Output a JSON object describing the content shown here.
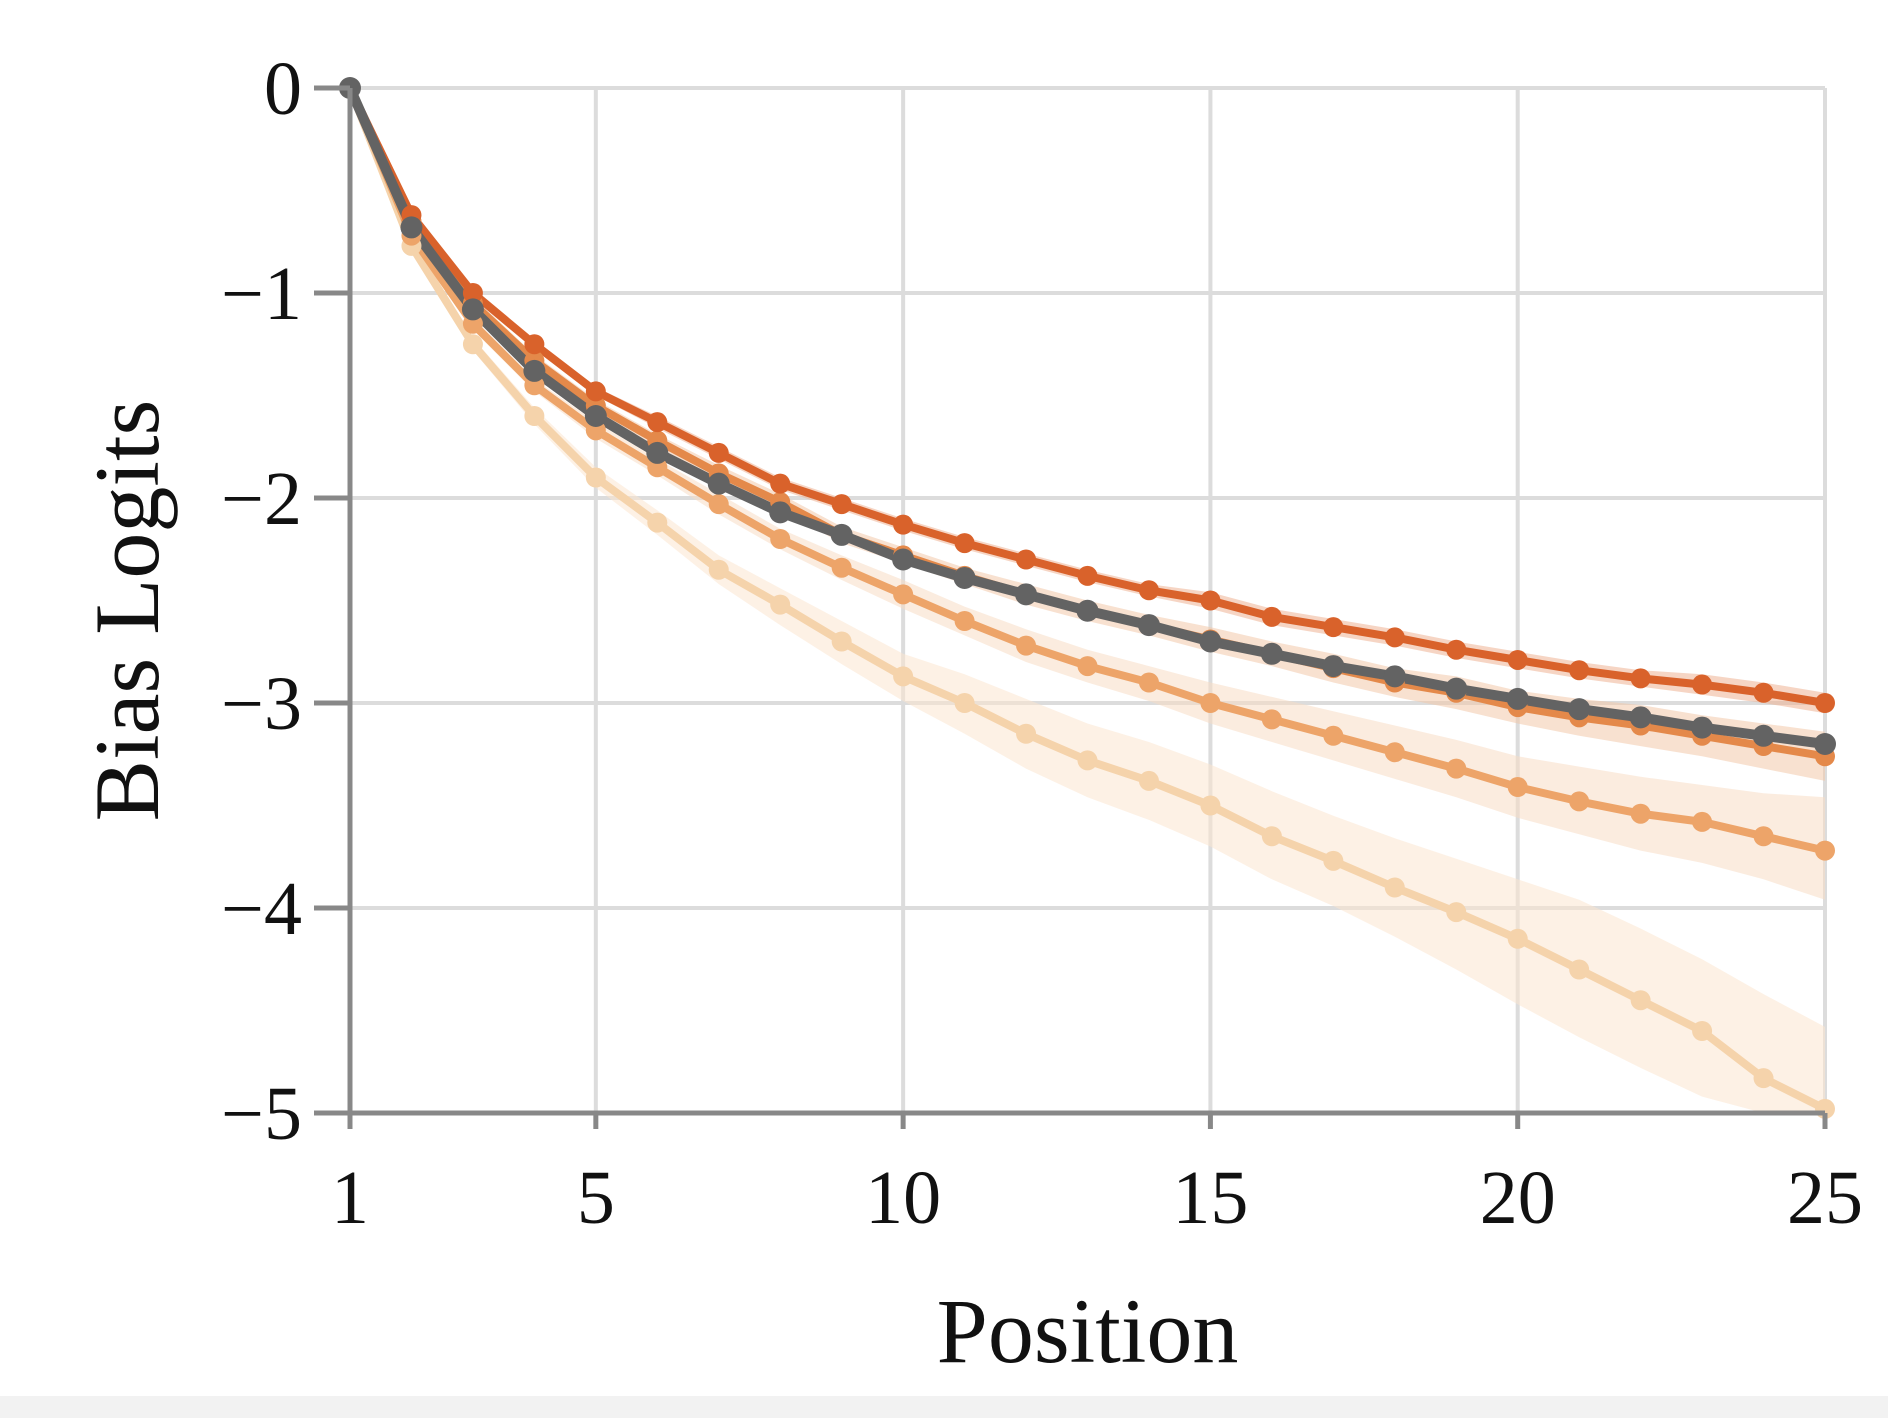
{
  "chart_data": {
    "type": "line",
    "xlabel": "Position",
    "ylabel": "Bias Logits",
    "xlim": [
      1,
      25
    ],
    "ylim": [
      -5,
      0
    ],
    "x_ticks": [
      1,
      5,
      10,
      15,
      20,
      25
    ],
    "x_tick_labels": [
      "1",
      "5",
      "10",
      "15",
      "20",
      "25"
    ],
    "y_ticks": [
      0,
      -1,
      -2,
      -3,
      -4,
      -5
    ],
    "y_tick_labels": [
      "0",
      "−1",
      "−2",
      "−3",
      "−4",
      "−5"
    ],
    "grid": true,
    "legend": "none",
    "x": [
      1,
      2,
      3,
      4,
      5,
      6,
      7,
      8,
      9,
      10,
      11,
      12,
      13,
      14,
      15,
      16,
      17,
      18,
      19,
      20,
      21,
      22,
      23,
      24,
      25
    ],
    "series": [
      {
        "color": "#f5d3ab",
        "band_color": "#fbe6d0",
        "values": [
          0,
          -0.77,
          -1.25,
          -1.6,
          -1.9,
          -2.12,
          -2.35,
          -2.52,
          -2.7,
          -2.87,
          -3.0,
          -3.15,
          -3.28,
          -3.38,
          -3.5,
          -3.65,
          -3.77,
          -3.9,
          -4.02,
          -4.15,
          -4.3,
          -4.45,
          -4.6,
          -4.83,
          -4.98
        ],
        "band_lower": [
          0,
          -0.79,
          -1.28,
          -1.64,
          -1.95,
          -2.18,
          -2.42,
          -2.62,
          -2.81,
          -2.99,
          -3.15,
          -3.32,
          -3.46,
          -3.57,
          -3.7,
          -3.86,
          -3.99,
          -4.14,
          -4.3,
          -4.47,
          -4.63,
          -4.78,
          -4.92,
          -5.0,
          -5.0
        ],
        "band_upper": [
          0,
          -0.75,
          -1.22,
          -1.56,
          -1.85,
          -2.06,
          -2.28,
          -2.44,
          -2.6,
          -2.76,
          -2.86,
          -2.98,
          -3.1,
          -3.19,
          -3.3,
          -3.43,
          -3.55,
          -3.66,
          -3.76,
          -3.86,
          -3.96,
          -4.1,
          -4.25,
          -4.42,
          -4.58
        ]
      },
      {
        "color": "#eda469",
        "band_color": "#f8dcc4",
        "values": [
          0,
          -0.72,
          -1.15,
          -1.45,
          -1.67,
          -1.85,
          -2.03,
          -2.2,
          -2.34,
          -2.47,
          -2.6,
          -2.72,
          -2.82,
          -2.9,
          -3.0,
          -3.08,
          -3.16,
          -3.24,
          -3.32,
          -3.41,
          -3.48,
          -3.54,
          -3.58,
          -3.65,
          -3.72
        ],
        "band_lower": [
          0,
          -0.74,
          -1.18,
          -1.48,
          -1.71,
          -1.89,
          -2.08,
          -2.25,
          -2.4,
          -2.54,
          -2.67,
          -2.8,
          -2.9,
          -2.99,
          -3.1,
          -3.19,
          -3.28,
          -3.37,
          -3.46,
          -3.56,
          -3.64,
          -3.72,
          -3.78,
          -3.86,
          -3.96
        ],
        "band_upper": [
          0,
          -0.7,
          -1.12,
          -1.42,
          -1.63,
          -1.81,
          -1.98,
          -2.15,
          -2.28,
          -2.4,
          -2.53,
          -2.64,
          -2.74,
          -2.82,
          -2.9,
          -2.97,
          -3.04,
          -3.11,
          -3.18,
          -3.26,
          -3.31,
          -3.36,
          -3.4,
          -3.44,
          -3.46
        ]
      },
      {
        "color": "#e4894a",
        "band_color": "#f3c9a9",
        "values": [
          0,
          -0.65,
          -1.05,
          -1.33,
          -1.55,
          -1.72,
          -1.88,
          -2.02,
          -2.18,
          -2.28,
          -2.38,
          -2.47,
          -2.55,
          -2.62,
          -2.69,
          -2.76,
          -2.83,
          -2.9,
          -2.95,
          -3.02,
          -3.07,
          -3.11,
          -3.16,
          -3.21,
          -3.26
        ],
        "band_lower": [
          0,
          -0.67,
          -1.08,
          -1.36,
          -1.58,
          -1.75,
          -1.92,
          -2.06,
          -2.22,
          -2.32,
          -2.42,
          -2.52,
          -2.6,
          -2.67,
          -2.75,
          -2.82,
          -2.9,
          -2.97,
          -3.03,
          -3.1,
          -3.16,
          -3.21,
          -3.26,
          -3.32,
          -3.38
        ],
        "band_upper": [
          0,
          -0.63,
          -1.02,
          -1.3,
          -1.52,
          -1.69,
          -1.84,
          -1.98,
          -2.14,
          -2.24,
          -2.34,
          -2.42,
          -2.5,
          -2.57,
          -2.63,
          -2.7,
          -2.76,
          -2.83,
          -2.87,
          -2.94,
          -2.98,
          -3.01,
          -3.06,
          -3.1,
          -3.14
        ]
      },
      {
        "color": "#d9622b",
        "band_color": "#efb393",
        "values": [
          0,
          -0.62,
          -1.0,
          -1.25,
          -1.48,
          -1.63,
          -1.78,
          -1.93,
          -2.03,
          -2.13,
          -2.22,
          -2.3,
          -2.38,
          -2.45,
          -2.5,
          -2.58,
          -2.63,
          -2.68,
          -2.74,
          -2.79,
          -2.84,
          -2.88,
          -2.91,
          -2.95,
          -3.0
        ],
        "band_lower": [
          0,
          -0.63,
          -1.02,
          -1.27,
          -1.5,
          -1.66,
          -1.81,
          -1.96,
          -2.06,
          -2.16,
          -2.25,
          -2.33,
          -2.41,
          -2.48,
          -2.54,
          -2.62,
          -2.67,
          -2.72,
          -2.78,
          -2.83,
          -2.88,
          -2.92,
          -2.96,
          -3.0,
          -3.05
        ],
        "band_upper": [
          0,
          -0.61,
          -0.98,
          -1.23,
          -1.46,
          -1.6,
          -1.75,
          -1.9,
          -2.0,
          -2.1,
          -2.19,
          -2.27,
          -2.35,
          -2.42,
          -2.46,
          -2.54,
          -2.59,
          -2.64,
          -2.7,
          -2.75,
          -2.8,
          -2.84,
          -2.86,
          -2.9,
          -2.95
        ]
      },
      {
        "color": "#636363",
        "band_color": "#c8c8c8",
        "values": [
          0,
          -0.68,
          -1.08,
          -1.38,
          -1.6,
          -1.78,
          -1.93,
          -2.07,
          -2.18,
          -2.3,
          -2.39,
          -2.47,
          -2.55,
          -2.62,
          -2.7,
          -2.76,
          -2.82,
          -2.87,
          -2.93,
          -2.98,
          -3.03,
          -3.07,
          -3.12,
          -3.16,
          -3.2
        ],
        "band_lower": [
          0,
          -0.69,
          -1.09,
          -1.39,
          -1.61,
          -1.79,
          -1.94,
          -2.08,
          -2.19,
          -2.31,
          -2.4,
          -2.48,
          -2.56,
          -2.63,
          -2.71,
          -2.77,
          -2.83,
          -2.88,
          -2.94,
          -2.99,
          -3.04,
          -3.08,
          -3.13,
          -3.17,
          -3.21
        ],
        "band_upper": [
          0,
          -0.67,
          -1.07,
          -1.37,
          -1.59,
          -1.77,
          -1.92,
          -2.06,
          -2.17,
          -2.29,
          -2.38,
          -2.46,
          -2.54,
          -2.61,
          -2.69,
          -2.75,
          -2.81,
          -2.86,
          -2.92,
          -2.97,
          -3.02,
          -3.06,
          -3.11,
          -3.15,
          -3.19
        ]
      }
    ]
  }
}
